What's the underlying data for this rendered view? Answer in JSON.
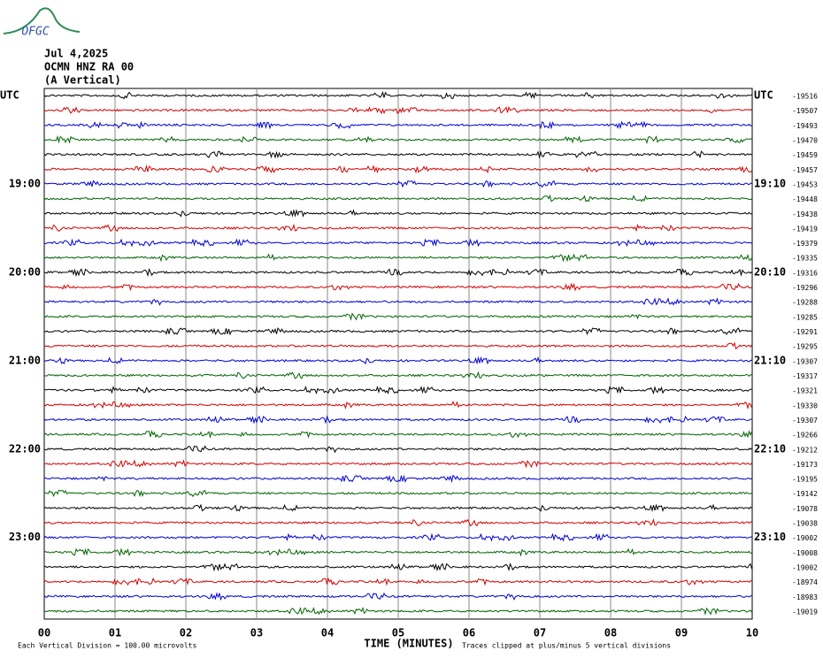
{
  "header": {
    "logo": "OFGC",
    "date": "Jul 4,2025",
    "station": "OCMN HNZ RA 00",
    "component": "(A Vertical)"
  },
  "trace_colors": [
    "#000000",
    "#d40000",
    "#0000d4",
    "#006400"
  ],
  "left_labels": [
    "UTC",
    null,
    null,
    null,
    null,
    null,
    "19:00",
    null,
    null,
    null,
    null,
    null,
    "20:00",
    null,
    null,
    null,
    null,
    null,
    "21:00",
    null,
    null,
    null,
    null,
    null,
    "22:00",
    null,
    null,
    null,
    null,
    null,
    "23:00",
    null,
    null,
    null,
    null,
    null
  ],
  "right_labels": [
    "UTC",
    null,
    null,
    null,
    null,
    null,
    "19:10",
    null,
    null,
    null,
    null,
    null,
    "20:10",
    null,
    null,
    null,
    null,
    null,
    "21:10",
    null,
    null,
    null,
    null,
    null,
    "22:10",
    null,
    null,
    null,
    null,
    null,
    "23:10",
    null,
    null,
    null,
    null,
    null
  ],
  "offsets": [
    -19516,
    -19507,
    -19493,
    -19470,
    -19459,
    -19457,
    -19453,
    -19448,
    -19438,
    -19419,
    -19379,
    -19335,
    -19316,
    -19296,
    -19288,
    -19285,
    -19291,
    -19295,
    -19307,
    -19317,
    -19321,
    -19330,
    -19307,
    -19266,
    -19212,
    -19173,
    -19195,
    -19142,
    -19078,
    -19038,
    -19002,
    -19008,
    -19002,
    -18974,
    -18983,
    -19019
  ],
  "x_ticks": [
    "00",
    "01",
    "02",
    "03",
    "04",
    "05",
    "06",
    "07",
    "08",
    "09",
    "10"
  ],
  "footer": {
    "axis_title": "TIME (MINUTES)",
    "scale_note": "Each Vertical Division =  100.00 microvolts",
    "clip_note": "Traces clipped at plus/minus 5 vertical divisions"
  }
}
